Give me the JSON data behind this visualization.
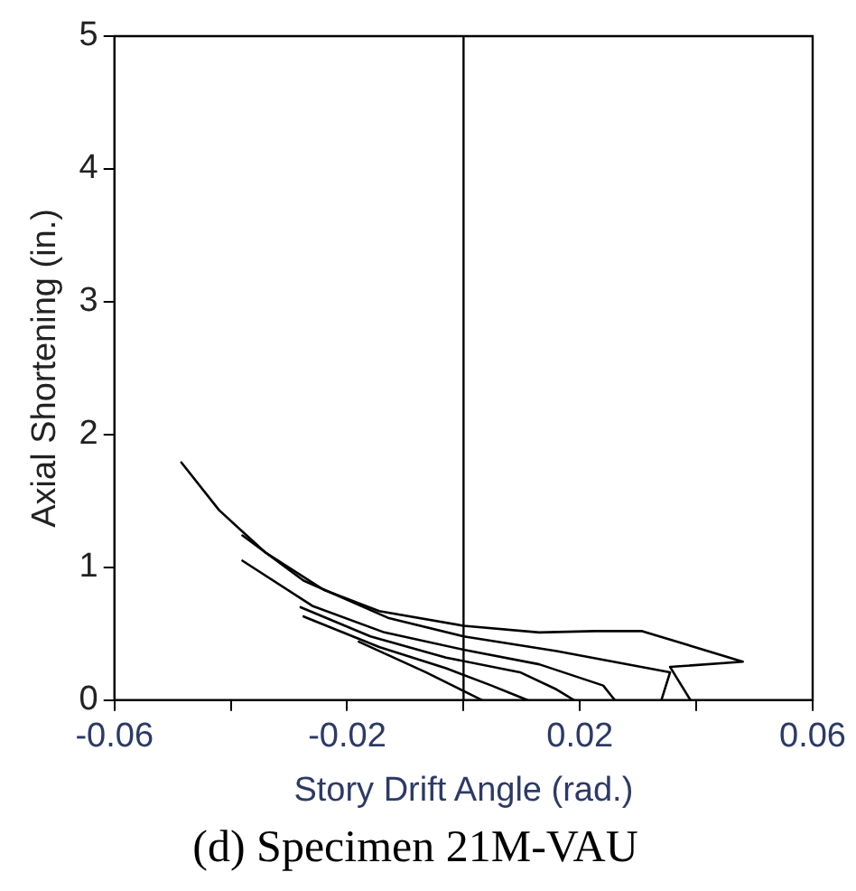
{
  "chart_data": {
    "type": "line",
    "title": "(d) Specimen 21M-VAU",
    "xlabel": "Story Drift Angle (rad.)",
    "ylabel": "Axial Shortening (in.)",
    "xlim": [
      -0.06,
      0.06
    ],
    "xticks": [
      -0.06,
      {
        "value": -0.04,
        "label": null
      },
      -0.02,
      {
        "value": 0,
        "label": null
      },
      0.02,
      {
        "value": 0.04,
        "label": null
      },
      0.06
    ],
    "ylim": [
      0,
      5
    ],
    "yticks": [
      0,
      1,
      2,
      3,
      4,
      5
    ],
    "grid": false,
    "legend": false,
    "marker": "none",
    "line_style": "solid",
    "ref_lines": [
      {
        "axis": "x",
        "value": 0,
        "color": "#000000"
      }
    ],
    "series": [
      {
        "color": "#000000",
        "x": [
          -0.0485,
          -0.042,
          -0.034,
          -0.024,
          -0.0145,
          0,
          0.013,
          0.0226,
          0.0307,
          0.048,
          0.0355,
          0.039
        ],
        "values": [
          1.79,
          1.43,
          1.11,
          0.83,
          0.67,
          0.56,
          0.51,
          0.52,
          0.52,
          0.29,
          0.25,
          0
        ]
      },
      {
        "color": "#000000",
        "x": [
          -0.038,
          -0.0275,
          -0.013,
          0,
          0.016,
          0.0355,
          0.034
        ],
        "values": [
          1.24,
          0.9,
          0.62,
          0.48,
          0.37,
          0.21,
          0
        ]
      },
      {
        "color": "#000000",
        "x": [
          -0.038,
          -0.026,
          -0.0136,
          0,
          0.013,
          0.024,
          0.026
        ],
        "values": [
          1.05,
          0.71,
          0.51,
          0.38,
          0.27,
          0.11,
          0
        ]
      },
      {
        "color": "#000000",
        "x": [
          -0.028,
          -0.016,
          -0.003,
          0.0097,
          0.016,
          0.019
        ],
        "values": [
          0.7,
          0.48,
          0.32,
          0.21,
          0.08,
          0
        ]
      },
      {
        "color": "#000000",
        "x": [
          -0.0275,
          -0.0145,
          -0.003,
          0.0048,
          0.011
        ],
        "values": [
          0.63,
          0.4,
          0.24,
          0.11,
          0
        ]
      },
      {
        "color": "#000000",
        "x": [
          -0.018,
          -0.0065,
          0.0032
        ],
        "values": [
          0.44,
          0.21,
          0
        ]
      }
    ]
  }
}
